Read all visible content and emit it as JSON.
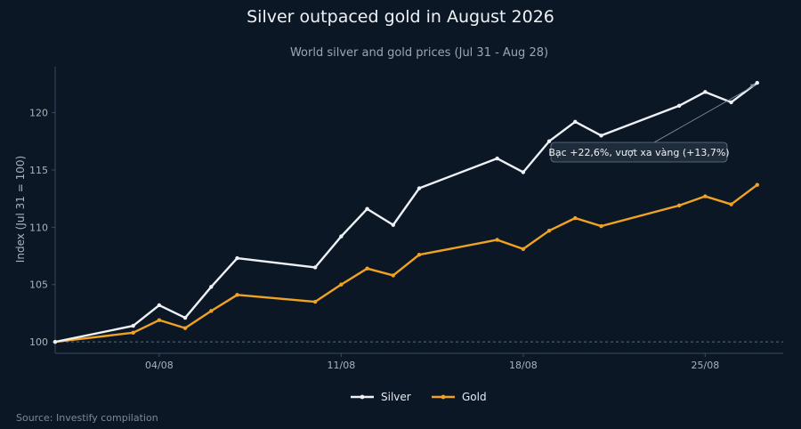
{
  "title": "Silver outpaced gold in August 2026",
  "subtitle": "World silver and gold prices (Jul 31 - Aug 28)",
  "source": "Source: Investify compilation",
  "colors": {
    "background": "#0c1726",
    "silver": "#eef1f5",
    "gold": "#f0a322",
    "baseline": "#5a6b80"
  },
  "chart_data": {
    "type": "line",
    "title": "Silver outpaced gold in August 2026",
    "subtitle": "World silver and gold prices (Jul 31 - Aug 28)",
    "xlabel": "",
    "ylabel": "Index (Jul 31 = 100)",
    "x_ticks": [
      {
        "date": "2026-08-04",
        "label": "04/08"
      },
      {
        "date": "2026-08-11",
        "label": "11/08"
      },
      {
        "date": "2026-08-18",
        "label": "18/08"
      },
      {
        "date": "2026-08-25",
        "label": "25/08"
      }
    ],
    "y_ticks": [
      100,
      105,
      110,
      115,
      120
    ],
    "xlim": [
      "2026-07-31",
      "2026-08-28"
    ],
    "ylim": [
      99,
      124
    ],
    "baseline": 100,
    "grid": false,
    "legend_position": "bottom-center",
    "x": [
      "2026-07-31",
      "2026-08-03",
      "2026-08-04",
      "2026-08-05",
      "2026-08-06",
      "2026-08-07",
      "2026-08-10",
      "2026-08-11",
      "2026-08-12",
      "2026-08-13",
      "2026-08-14",
      "2026-08-17",
      "2026-08-18",
      "2026-08-19",
      "2026-08-20",
      "2026-08-21",
      "2026-08-24",
      "2026-08-25",
      "2026-08-26",
      "2026-08-27"
    ],
    "series": [
      {
        "name": "Silver",
        "values": [
          100.0,
          101.4,
          103.2,
          102.1,
          104.8,
          107.3,
          106.5,
          109.2,
          111.6,
          110.2,
          113.4,
          116.0,
          114.8,
          117.5,
          119.2,
          118.0,
          120.6,
          121.8,
          120.9,
          122.6
        ]
      },
      {
        "name": "Gold",
        "values": [
          100.0,
          100.8,
          101.9,
          101.2,
          102.7,
          104.1,
          103.5,
          105.0,
          106.4,
          105.8,
          107.6,
          108.9,
          108.1,
          109.7,
          110.8,
          110.1,
          111.9,
          112.7,
          112.0,
          113.7
        ]
      }
    ],
    "annotation": {
      "text": "Bạc +22,6%, vượt xa vàng (+13,7%)",
      "target_series": "Silver",
      "target_date": "2026-08-27"
    }
  }
}
